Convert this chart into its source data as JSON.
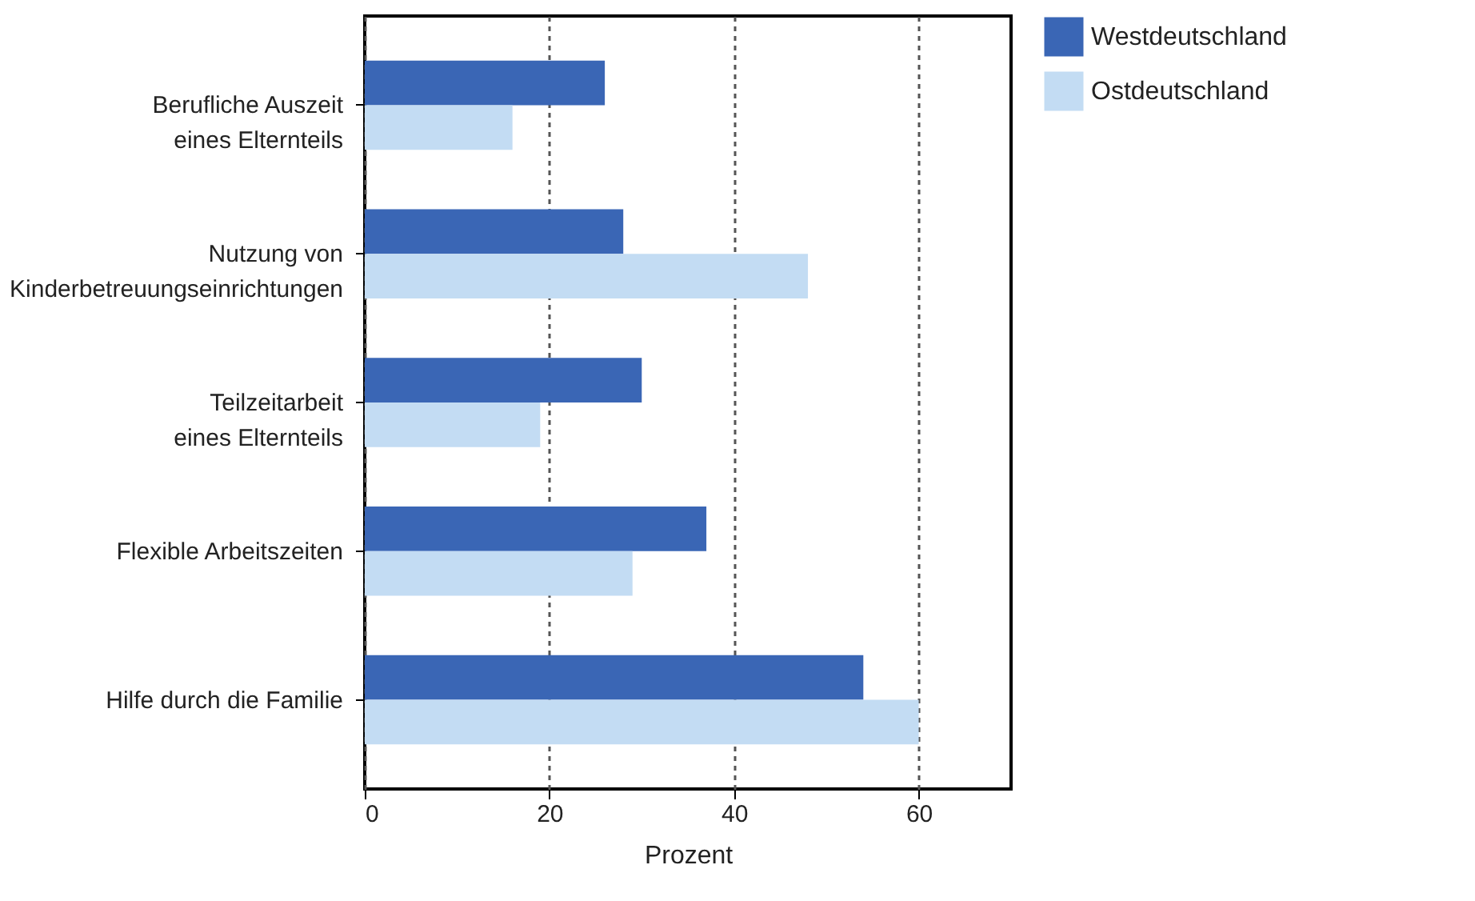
{
  "chart_data": {
    "type": "bar",
    "orientation": "horizontal",
    "xlabel": "Prozent",
    "categories": [
      "Berufliche Auszeit\neines Elternteils",
      "Nutzung von\nKinderbetreuungseinrichtungen",
      "Teilzeitarbeit\neines Elternteils",
      "Flexible Arbeitszeiten",
      "Hilfe durch die Familie"
    ],
    "series": [
      {
        "name": "Westdeutschland",
        "color": "#3a66b5",
        "values": [
          26,
          28,
          30,
          37,
          54
        ]
      },
      {
        "name": "Ostdeutschland",
        "color": "#c3dcf3",
        "values": [
          16,
          48,
          19,
          29,
          60
        ]
      }
    ],
    "xlim": [
      0,
      70
    ],
    "xticks": [
      0,
      20,
      40,
      60
    ],
    "grid": "x",
    "legend": "right"
  }
}
